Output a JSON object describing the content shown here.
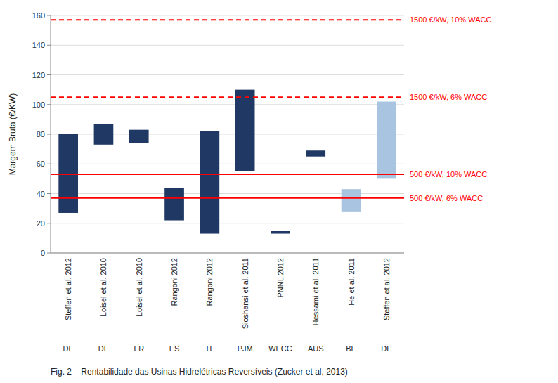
{
  "chart_data": {
    "type": "bar",
    "ylabel": "Margem Bruta (€/KW)",
    "caption": "Fig. 2 – Rentabilidade das Usinas Hidrelétricas Reversíveis (Zucker et al, 2013)",
    "categories": [
      "Steffen et al. 2012",
      "Loisel et al. 2010",
      "Loisel et al. 2010",
      "Rangoni 2012",
      "Rangoni 2012",
      "Sioshansi et al. 2011",
      "PNNL 2012",
      "Hessami et al. 2011",
      "He et al. 2011",
      "Steffen et al. 2012"
    ],
    "subcategories": [
      "DE",
      "DE",
      "FR",
      "ES",
      "IT",
      "PJM",
      "WECC",
      "AUS",
      "BE",
      "DE"
    ],
    "bottoms": [
      27,
      73,
      74,
      22,
      13,
      55,
      13,
      65,
      28,
      50
    ],
    "values": [
      80,
      87,
      83,
      44,
      82,
      110,
      15,
      69,
      43,
      102
    ],
    "colors": [
      "#1f3864",
      "#1f3864",
      "#1f3864",
      "#1f3864",
      "#1f3864",
      "#1f3864",
      "#1f3864",
      "#1f3864",
      "#a9c4e0",
      "#a9c4e0"
    ],
    "reference_lines": [
      {
        "value": 53,
        "label": "500 €/kW, 10% WACC",
        "line_style": "solid",
        "color": "#ff0000"
      },
      {
        "value": 37,
        "label": "500 €/kW, 6% WACC",
        "line_style": "solid",
        "color": "#ff0000"
      },
      {
        "value": 157,
        "label": "1500 €/kW, 10% WACC",
        "line_style": "dashed",
        "color": "#ff0000"
      },
      {
        "value": 105,
        "label": "1500 €/kW, 6% WACC",
        "line_style": "dashed",
        "color": "#ff0000"
      }
    ],
    "ylim": [
      0,
      160
    ],
    "yticks": [
      0,
      20,
      40,
      60,
      80,
      100,
      120,
      140,
      160
    ],
    "grid": true
  }
}
